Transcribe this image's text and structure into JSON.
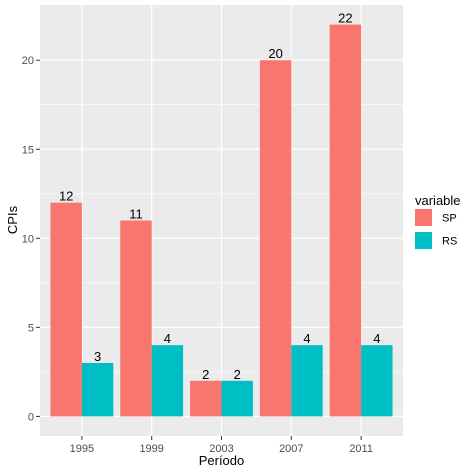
{
  "chart_data": {
    "type": "bar",
    "xlabel": "Período",
    "ylabel": "CPIs",
    "categories": [
      "1995",
      "1999",
      "2003",
      "2007",
      "2011"
    ],
    "series": [
      {
        "name": "SP",
        "values": [
          12,
          11,
          2,
          20,
          22
        ],
        "color": "#F8766D"
      },
      {
        "name": "RS",
        "values": [
          3,
          4,
          2,
          4,
          4
        ],
        "color": "#00BFC4"
      }
    ],
    "ylim": [
      -1.1,
      23.1
    ],
    "yticks": [
      0,
      5,
      10,
      15,
      20
    ],
    "grid": true,
    "panel_background": "#EBEBEB",
    "legend": {
      "title": "variable",
      "position": "right"
    }
  }
}
